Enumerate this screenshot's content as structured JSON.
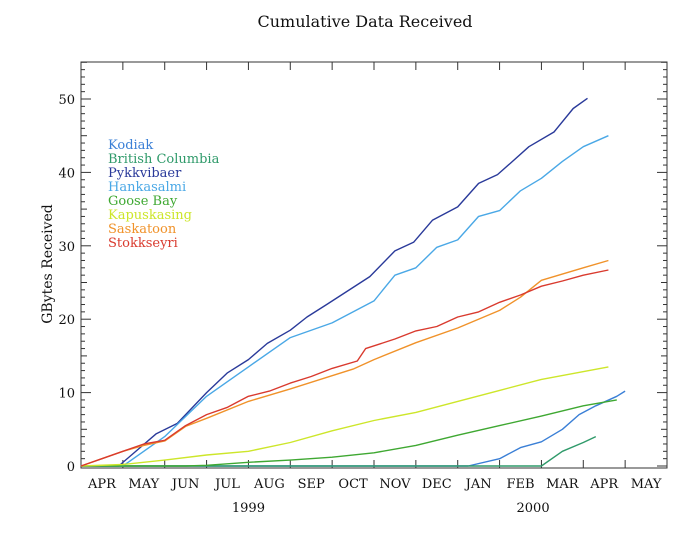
{
  "chart_data": {
    "type": "line",
    "title": "Cumulative Data Received",
    "xlabel": "",
    "ylabel": "GBytes Received",
    "x_unit": "months since start of April 1999",
    "xlim": [
      0,
      14
    ],
    "ylim": [
      0,
      55
    ],
    "yticks": [
      0,
      10,
      20,
      30,
      40,
      50
    ],
    "month_labels": [
      "APR",
      "MAY",
      "JUN",
      "JUL",
      "AUG",
      "SEP",
      "OCT",
      "NOV",
      "DEC",
      "JAN",
      "FEB",
      "MAR",
      "APR",
      "MAY"
    ],
    "year_labels": [
      {
        "text": "1999",
        "month": 4
      },
      {
        "text": "2000",
        "month": 10.8
      }
    ],
    "grid": false,
    "legend_placement": "top-left",
    "series": [
      {
        "name": "Kodiak",
        "color": "#3a7fd6",
        "x": [
          0,
          9.25,
          10,
          10.5,
          11,
          11.5,
          11.9,
          12.3,
          12.8,
          13.0
        ],
        "y": [
          0,
          0,
          1,
          2.5,
          3.3,
          5,
          7,
          8.2,
          9.5,
          10.2
        ]
      },
      {
        "name": "British Columbia",
        "color": "#2f9a6a",
        "x": [
          0,
          11.0,
          11.5,
          12.0,
          12.3
        ],
        "y": [
          0,
          0,
          2,
          3.2,
          4
        ]
      },
      {
        "name": "Pykkvibaer",
        "color": "#2a3a9a",
        "x": [
          0,
          0.9,
          1.8,
          2.3,
          3.0,
          3.5,
          4.0,
          4.45,
          5.0,
          5.4,
          5.87,
          6.9,
          7.5,
          7.95,
          8.4,
          9.0,
          9.5,
          9.95,
          10.25,
          10.7,
          11.3,
          11.76,
          12.1
        ],
        "y": [
          0,
          0,
          4.4,
          5.8,
          10,
          12.7,
          14.5,
          16.7,
          18.5,
          20.3,
          22,
          25.8,
          29.3,
          30.5,
          33.5,
          35.3,
          38.5,
          39.7,
          41.2,
          43.5,
          45.5,
          48.7,
          50.1
        ]
      },
      {
        "name": "Hankasalmi",
        "color": "#4aa8e6",
        "x": [
          0,
          1.0,
          2.0,
          3.0,
          4.0,
          5.0,
          6.0,
          7.0,
          7.5,
          8.0,
          8.5,
          9.0,
          9.5,
          10.0,
          10.5,
          11.0,
          11.5,
          12.0,
          12.6
        ],
        "y": [
          0,
          0,
          4,
          9.5,
          13.5,
          17.5,
          19.5,
          22.5,
          26,
          27,
          29.8,
          30.8,
          34,
          34.8,
          37.5,
          39.2,
          41.5,
          43.5,
          45
        ]
      },
      {
        "name": "Goose Bay",
        "color": "#3fa832",
        "x": [
          0,
          2.5,
          3,
          4,
          5,
          6,
          7,
          8,
          9,
          10,
          11,
          12,
          12.8
        ],
        "y": [
          0,
          0,
          0.1,
          0.5,
          0.8,
          1.2,
          1.8,
          2.8,
          4.2,
          5.5,
          6.8,
          8.2,
          9
        ]
      },
      {
        "name": "Kapuskasing",
        "color": "#cde62a",
        "x": [
          0,
          1,
          2,
          3,
          4,
          5,
          6,
          7,
          8,
          9,
          10,
          11,
          12.6
        ],
        "y": [
          0,
          0.2,
          0.8,
          1.5,
          2,
          3.2,
          4.8,
          6.2,
          7.3,
          8.8,
          10.3,
          11.8,
          13.5
        ]
      },
      {
        "name": "Saskatoon",
        "color": "#f0922a",
        "x": [
          0,
          0.5,
          1,
          1.5,
          2,
          2.5,
          3,
          4,
          5,
          6,
          6.5,
          7,
          8,
          9,
          10,
          10.5,
          11,
          12,
          12.6
        ],
        "y": [
          0,
          1,
          2,
          2.8,
          3.4,
          5.4,
          6.5,
          8.8,
          10.5,
          12.3,
          13.2,
          14.5,
          16.8,
          18.8,
          21.2,
          23,
          25.3,
          27,
          28
        ]
      },
      {
        "name": "Stokkseyri",
        "color": "#d93a2e",
        "x": [
          0,
          0.5,
          1,
          1.5,
          2,
          2.5,
          3,
          3.5,
          4,
          4.5,
          5,
          5.5,
          6,
          6.6,
          6.8,
          7.5,
          8,
          8.5,
          9,
          9.5,
          10,
          10.5,
          11,
          11.5,
          12,
          12.6
        ],
        "y": [
          0,
          1,
          2,
          3,
          3.5,
          5.5,
          7,
          8,
          9.5,
          10.2,
          11.3,
          12.2,
          13.3,
          14.3,
          16,
          17.3,
          18.4,
          19,
          20.3,
          21,
          22.3,
          23.3,
          24.5,
          25.2,
          26,
          26.7
        ]
      }
    ]
  }
}
